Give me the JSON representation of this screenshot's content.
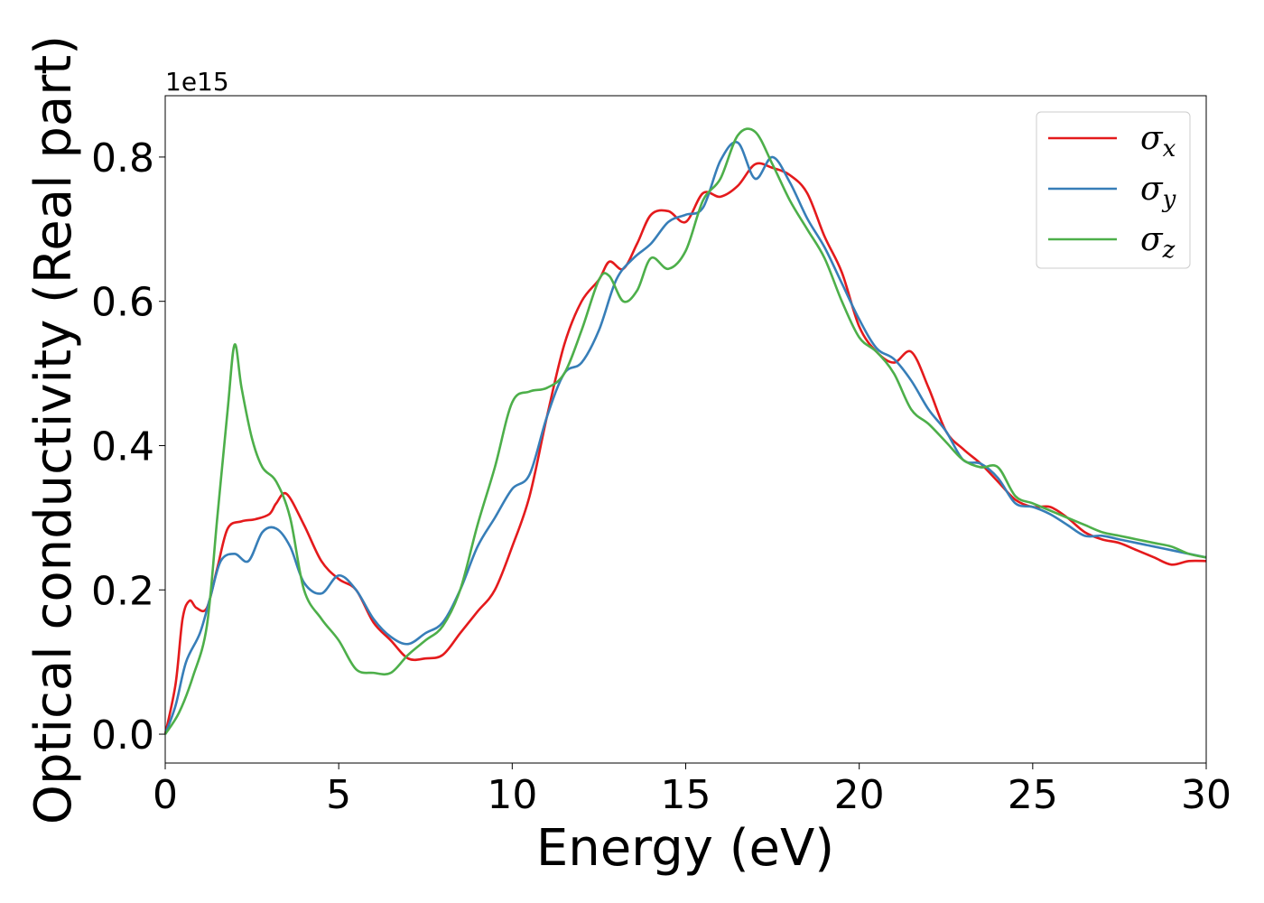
{
  "chart_data": {
    "type": "line",
    "xlabel": "Energy (eV)",
    "ylabel": "Optical conductivity (Real part)",
    "y_offset_label": "1e15",
    "xlim": [
      0,
      30
    ],
    "ylim": [
      -0.04,
      0.885
    ],
    "x_ticks": [
      0,
      5,
      10,
      15,
      20,
      25,
      30
    ],
    "x_tick_labels": [
      "0",
      "5",
      "10",
      "15",
      "20",
      "25",
      "30"
    ],
    "y_ticks": [
      0.0,
      0.2,
      0.4,
      0.6,
      0.8
    ],
    "y_tick_labels": [
      "0.0",
      "0.2",
      "0.4",
      "0.6",
      "0.8"
    ],
    "grid": false,
    "legend_position": "top-right",
    "series": [
      {
        "name": "σx",
        "legend_symbol": "σ",
        "legend_subscript": "x",
        "color": "#e41a1c",
        "x": [
          0,
          0.3,
          0.5,
          0.7,
          0.9,
          1.2,
          1.5,
          1.8,
          2.2,
          2.6,
          3.0,
          3.2,
          3.5,
          4.0,
          4.5,
          5.0,
          5.5,
          6.0,
          6.5,
          7.0,
          7.5,
          8.0,
          8.5,
          9.0,
          9.5,
          10.0,
          10.5,
          11.0,
          11.5,
          12.0,
          12.5,
          12.8,
          13.2,
          13.6,
          14.0,
          14.5,
          15.0,
          15.5,
          16.0,
          16.5,
          17.0,
          17.5,
          18.0,
          18.5,
          19.0,
          19.5,
          20.0,
          20.5,
          21.0,
          21.5,
          22.0,
          22.5,
          23.0,
          23.5,
          24.0,
          24.5,
          25.0,
          25.5,
          26.0,
          26.5,
          27.0,
          27.5,
          28.0,
          28.5,
          29.0,
          29.5,
          30.0
        ],
        "y": [
          0.0,
          0.07,
          0.16,
          0.185,
          0.175,
          0.175,
          0.23,
          0.285,
          0.295,
          0.298,
          0.305,
          0.32,
          0.333,
          0.29,
          0.24,
          0.215,
          0.2,
          0.155,
          0.13,
          0.105,
          0.105,
          0.11,
          0.14,
          0.17,
          0.2,
          0.26,
          0.33,
          0.44,
          0.54,
          0.6,
          0.63,
          0.655,
          0.645,
          0.68,
          0.72,
          0.725,
          0.71,
          0.75,
          0.745,
          0.76,
          0.79,
          0.785,
          0.775,
          0.75,
          0.69,
          0.64,
          0.565,
          0.53,
          0.515,
          0.53,
          0.48,
          0.42,
          0.395,
          0.375,
          0.35,
          0.325,
          0.315,
          0.315,
          0.3,
          0.28,
          0.27,
          0.265,
          0.255,
          0.245,
          0.235,
          0.24,
          0.24
        ]
      },
      {
        "name": "σy",
        "legend_symbol": "σ",
        "legend_subscript": "y",
        "color": "#377eb8",
        "x": [
          0,
          0.3,
          0.6,
          1.0,
          1.3,
          1.6,
          2.0,
          2.4,
          2.8,
          3.2,
          3.6,
          4.0,
          4.5,
          5.0,
          5.5,
          6.0,
          6.5,
          7.0,
          7.5,
          8.0,
          8.5,
          9.0,
          9.5,
          10.0,
          10.5,
          11.0,
          11.5,
          12.0,
          12.5,
          13.0,
          13.5,
          14.0,
          14.5,
          15.0,
          15.5,
          16.0,
          16.5,
          17.0,
          17.5,
          18.0,
          18.5,
          19.0,
          19.5,
          20.0,
          20.5,
          21.0,
          21.5,
          22.0,
          22.5,
          23.0,
          23.5,
          24.0,
          24.5,
          25.0,
          25.5,
          26.0,
          26.5,
          27.0,
          27.5,
          28.0,
          28.5,
          29.0,
          29.5,
          30.0
        ],
        "y": [
          0.0,
          0.04,
          0.1,
          0.14,
          0.19,
          0.24,
          0.25,
          0.24,
          0.28,
          0.285,
          0.26,
          0.21,
          0.195,
          0.22,
          0.2,
          0.16,
          0.135,
          0.125,
          0.14,
          0.155,
          0.2,
          0.26,
          0.3,
          0.34,
          0.36,
          0.44,
          0.5,
          0.515,
          0.56,
          0.63,
          0.66,
          0.68,
          0.71,
          0.72,
          0.73,
          0.795,
          0.82,
          0.77,
          0.8,
          0.765,
          0.715,
          0.675,
          0.625,
          0.575,
          0.535,
          0.52,
          0.49,
          0.45,
          0.42,
          0.38,
          0.375,
          0.355,
          0.32,
          0.315,
          0.305,
          0.29,
          0.275,
          0.275,
          0.27,
          0.265,
          0.26,
          0.255,
          0.25,
          0.245
        ]
      },
      {
        "name": "σz",
        "legend_symbol": "σ",
        "legend_subscript": "z",
        "color": "#4daf4a",
        "x": [
          0,
          0.4,
          0.8,
          1.2,
          1.5,
          1.8,
          2.0,
          2.2,
          2.5,
          2.8,
          3.2,
          3.6,
          4.0,
          4.5,
          5.0,
          5.5,
          6.0,
          6.5,
          7.0,
          7.5,
          8.0,
          8.5,
          9.0,
          9.5,
          10.0,
          10.5,
          11.0,
          11.5,
          12.0,
          12.5,
          12.8,
          13.2,
          13.6,
          14.0,
          14.5,
          15.0,
          15.5,
          16.0,
          16.5,
          17.0,
          17.5,
          18.0,
          18.5,
          19.0,
          19.5,
          20.0,
          20.5,
          21.0,
          21.5,
          22.0,
          22.5,
          23.0,
          23.5,
          24.0,
          24.5,
          25.0,
          25.5,
          26.0,
          26.5,
          27.0,
          27.5,
          28.0,
          28.5,
          29.0,
          29.5,
          30.0
        ],
        "y": [
          0.0,
          0.03,
          0.08,
          0.15,
          0.3,
          0.45,
          0.54,
          0.48,
          0.41,
          0.37,
          0.35,
          0.3,
          0.2,
          0.16,
          0.13,
          0.09,
          0.085,
          0.085,
          0.11,
          0.13,
          0.15,
          0.2,
          0.29,
          0.37,
          0.46,
          0.475,
          0.48,
          0.5,
          0.56,
          0.63,
          0.635,
          0.6,
          0.615,
          0.66,
          0.645,
          0.67,
          0.74,
          0.77,
          0.83,
          0.835,
          0.79,
          0.74,
          0.7,
          0.66,
          0.6,
          0.55,
          0.53,
          0.5,
          0.45,
          0.43,
          0.405,
          0.38,
          0.37,
          0.37,
          0.33,
          0.32,
          0.31,
          0.3,
          0.29,
          0.28,
          0.275,
          0.27,
          0.265,
          0.26,
          0.25,
          0.245
        ]
      }
    ]
  }
}
